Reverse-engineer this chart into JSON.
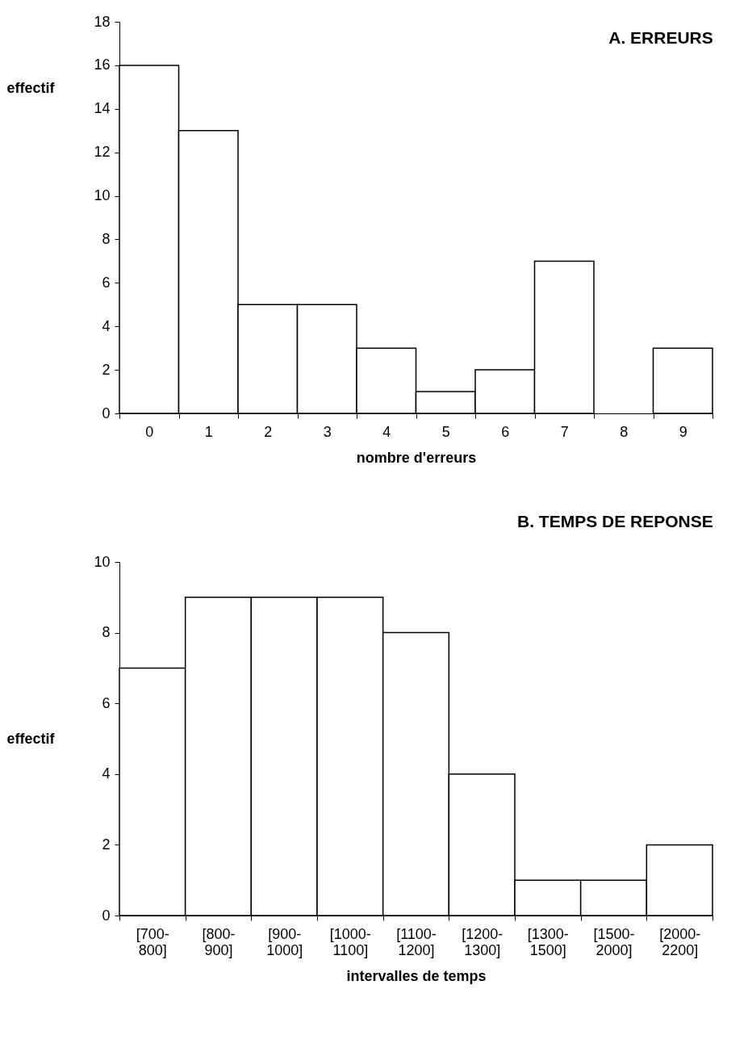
{
  "chart_data": [
    {
      "type": "bar",
      "title": "A. ERREURS",
      "xlabel": "nombre d'erreurs",
      "ylabel": "effectif",
      "categories": [
        "0",
        "1",
        "2",
        "3",
        "4",
        "5",
        "6",
        "7",
        "8",
        "9"
      ],
      "values": [
        16,
        13,
        5,
        5,
        3,
        1,
        2,
        7,
        0,
        3
      ],
      "color": "#ffffff",
      "ylim": [
        0,
        18
      ],
      "yticks": [
        0,
        2,
        4,
        6,
        8,
        10,
        12,
        14,
        16,
        18
      ]
    },
    {
      "type": "bar",
      "title": "B. TEMPS DE REPONSE",
      "xlabel": "intervalles de temps",
      "ylabel": "effectif",
      "categories": [
        "[700-800]",
        "[800-900]",
        "[900-1000]",
        "[1000-1100]",
        "[1100-1200]",
        "[1200-1300]",
        "[1300-1500]",
        "[1500-2000]",
        "[2000-2200]"
      ],
      "values": [
        7,
        9,
        9,
        9,
        8,
        4,
        1,
        1,
        2
      ],
      "color": "#ffffff",
      "ylim": [
        0,
        10
      ],
      "yticks": [
        0,
        2,
        4,
        6,
        8,
        10
      ]
    }
  ]
}
